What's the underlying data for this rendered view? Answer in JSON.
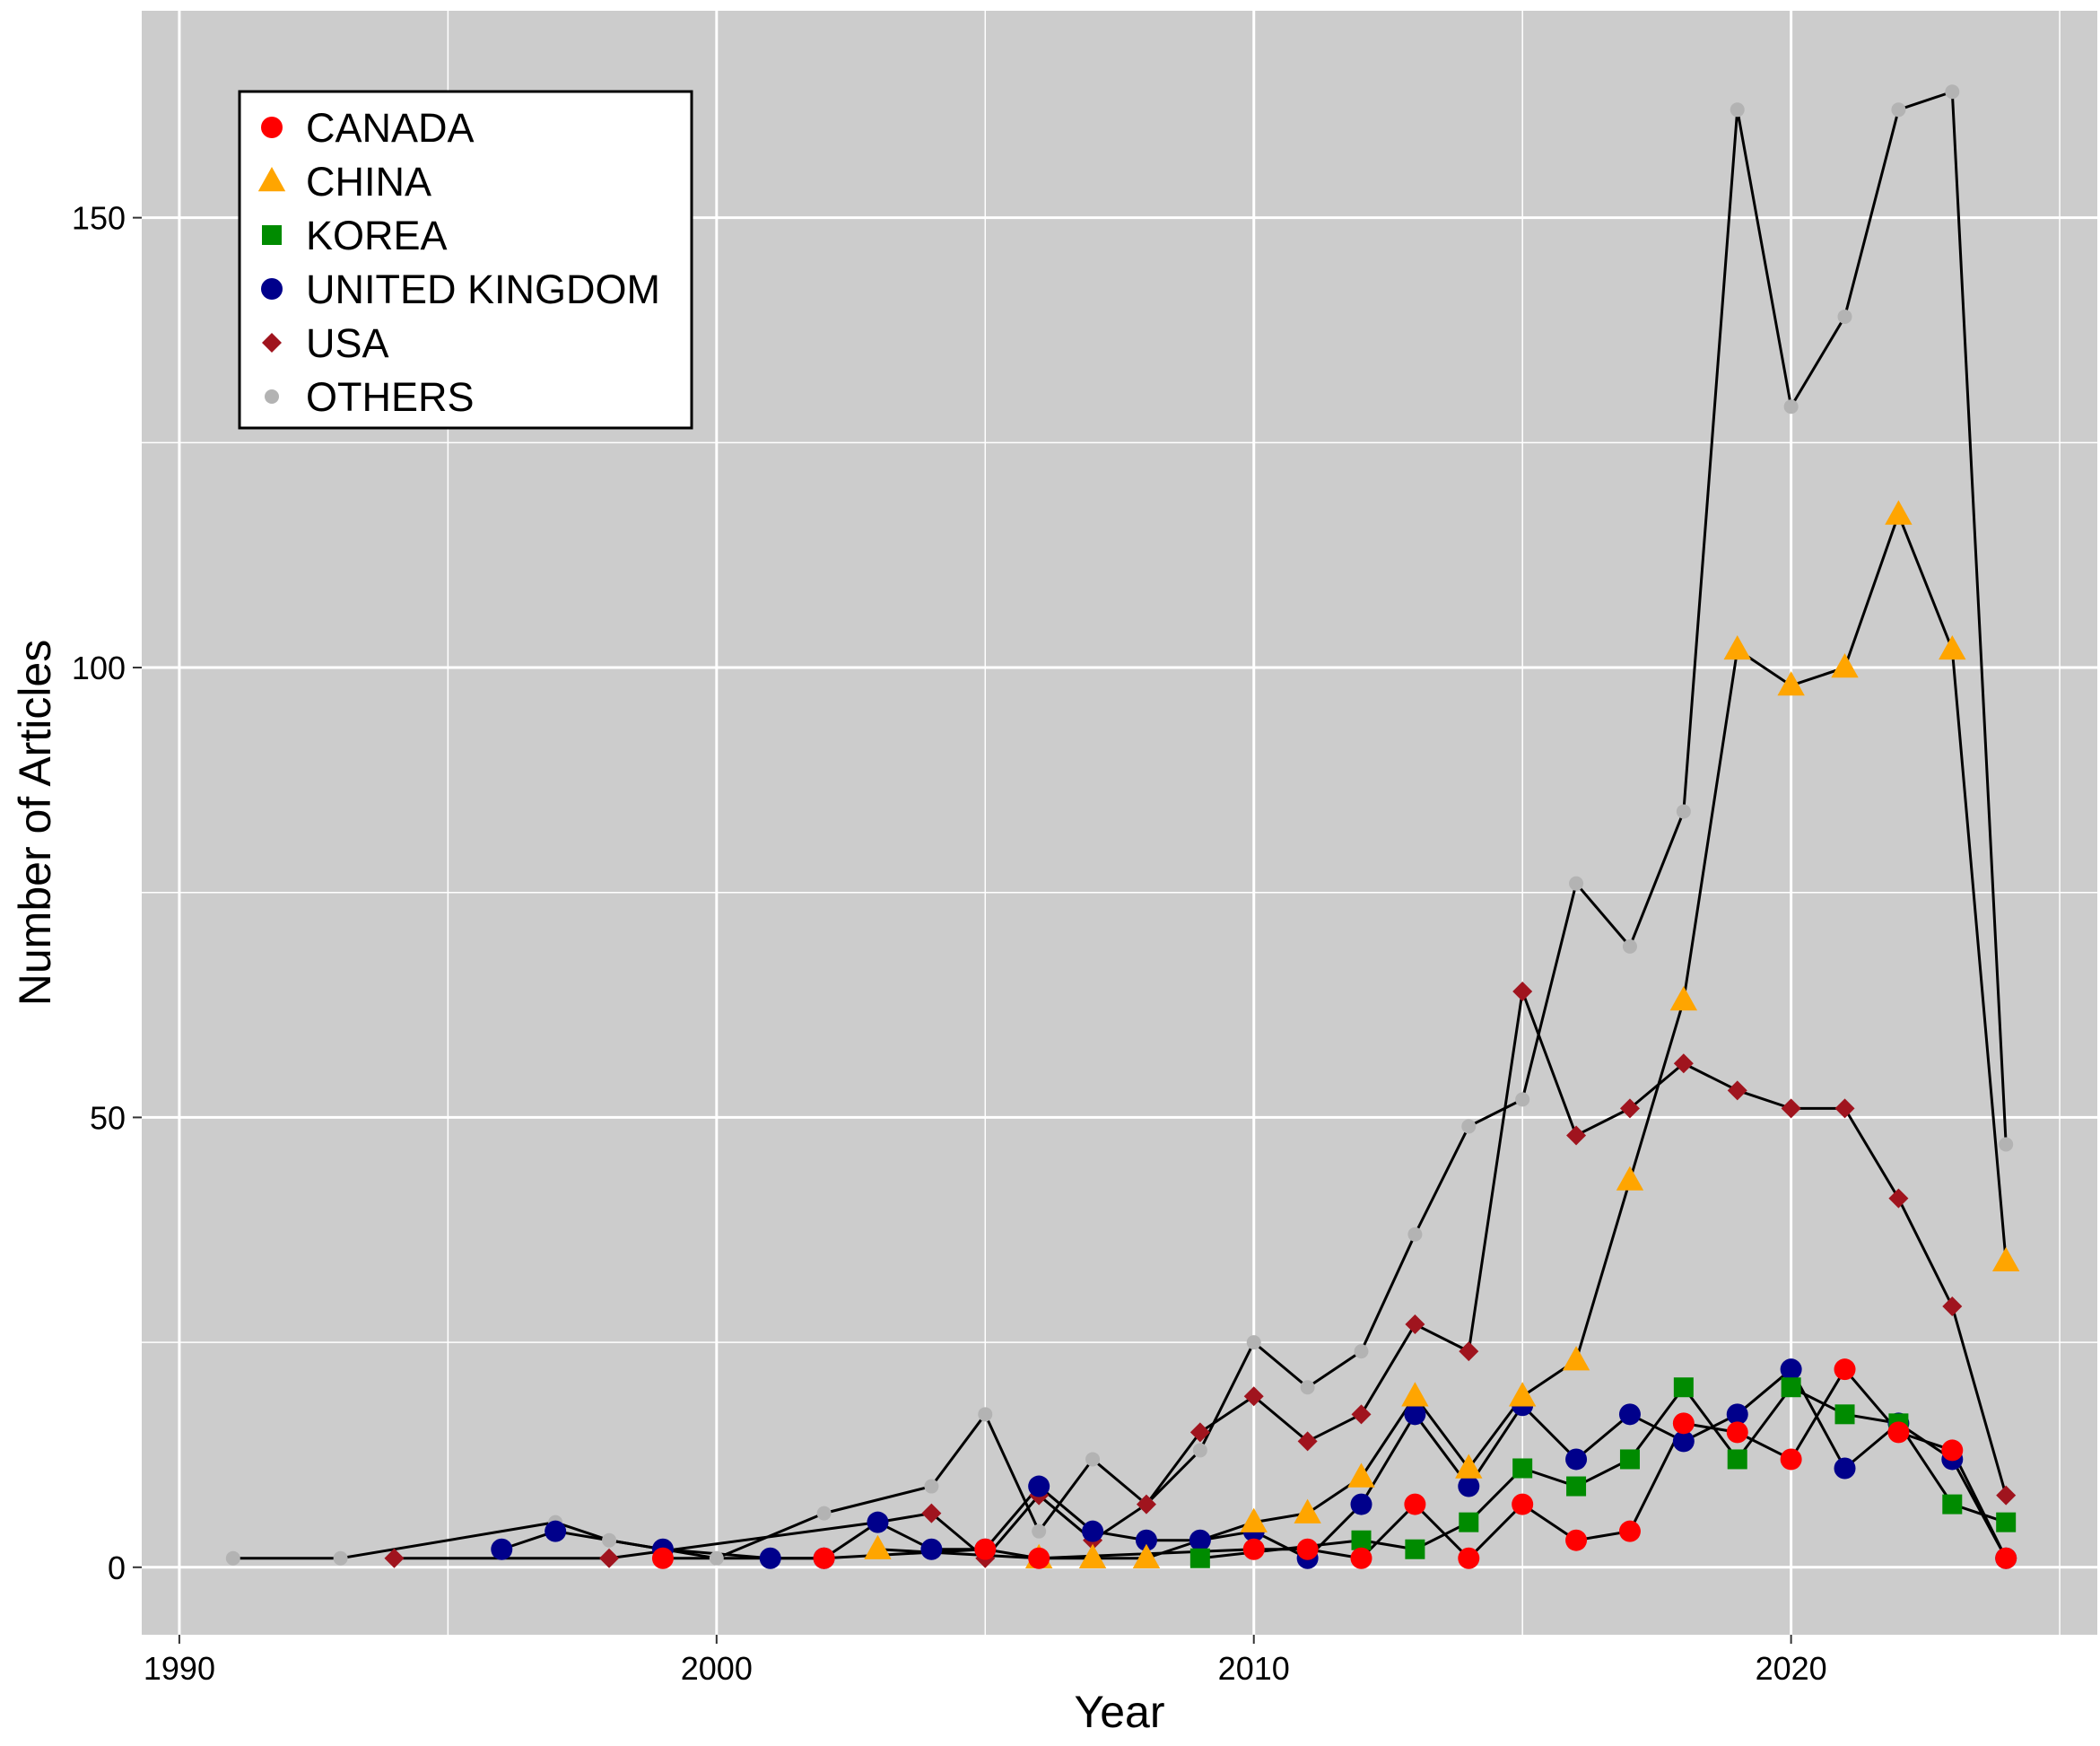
{
  "chart_data": {
    "type": "line",
    "title": "",
    "xlabel": "Year",
    "ylabel": "Number of Articles",
    "xlim": [
      1989.3,
      2025.7
    ],
    "ylim": [
      -7.5,
      173
    ],
    "x_ticks": [
      1990,
      2000,
      2010,
      2020
    ],
    "x_tick_labels": [
      "1990",
      "2000",
      "2010",
      "2020"
    ],
    "y_ticks": [
      0,
      50,
      100,
      150
    ],
    "y_tick_labels": [
      "0",
      "50",
      "100",
      "150"
    ],
    "grid": true,
    "legend_position": "top-left",
    "background": "#cccccc",
    "line_color": "#000000",
    "series": [
      {
        "name": "CANADA",
        "color": "#ff0000",
        "marker": "circle",
        "points": [
          [
            1999,
            1
          ],
          [
            2002,
            1
          ],
          [
            2005,
            2
          ],
          [
            2006,
            1
          ],
          [
            2010,
            2
          ],
          [
            2011,
            2
          ],
          [
            2012,
            1
          ],
          [
            2013,
            7
          ],
          [
            2014,
            1
          ],
          [
            2015,
            7
          ],
          [
            2016,
            3
          ],
          [
            2017,
            4
          ],
          [
            2018,
            16
          ],
          [
            2019,
            15
          ],
          [
            2020,
            12
          ],
          [
            2021,
            22
          ],
          [
            2022,
            15
          ],
          [
            2023,
            13
          ],
          [
            2024,
            1
          ]
        ]
      },
      {
        "name": "CHINA",
        "color": "#ffa500",
        "marker": "triangle",
        "points": [
          [
            2003,
            2
          ],
          [
            2006,
            1
          ],
          [
            2007,
            1
          ],
          [
            2008,
            1
          ],
          [
            2010,
            5
          ],
          [
            2011,
            6
          ],
          [
            2012,
            10
          ],
          [
            2013,
            19
          ],
          [
            2014,
            11
          ],
          [
            2015,
            19
          ],
          [
            2016,
            23
          ],
          [
            2017,
            43
          ],
          [
            2018,
            63
          ],
          [
            2019,
            102
          ],
          [
            2020,
            98
          ],
          [
            2021,
            100
          ],
          [
            2022,
            117
          ],
          [
            2023,
            102
          ],
          [
            2024,
            34
          ]
        ]
      },
      {
        "name": "KOREA",
        "color": "#008b00",
        "marker": "square",
        "points": [
          [
            2009,
            1
          ],
          [
            2012,
            3
          ],
          [
            2013,
            2
          ],
          [
            2014,
            5
          ],
          [
            2015,
            11
          ],
          [
            2016,
            9
          ],
          [
            2017,
            12
          ],
          [
            2018,
            20
          ],
          [
            2019,
            12
          ],
          [
            2020,
            20
          ],
          [
            2021,
            17
          ],
          [
            2022,
            16
          ],
          [
            2023,
            7
          ],
          [
            2024,
            5
          ]
        ]
      },
      {
        "name": "UNITED KINGDOM",
        "color": "#00008b",
        "marker": "circle",
        "points": [
          [
            1996,
            2
          ],
          [
            1997,
            4
          ],
          [
            1999,
            2
          ],
          [
            2001,
            1
          ],
          [
            2002,
            1
          ],
          [
            2003,
            5
          ],
          [
            2004,
            2
          ],
          [
            2005,
            2
          ],
          [
            2006,
            9
          ],
          [
            2007,
            4
          ],
          [
            2008,
            3
          ],
          [
            2009,
            3
          ],
          [
            2010,
            4
          ],
          [
            2011,
            1
          ],
          [
            2012,
            7
          ],
          [
            2013,
            17
          ],
          [
            2014,
            9
          ],
          [
            2015,
            18
          ],
          [
            2016,
            12
          ],
          [
            2017,
            17
          ],
          [
            2018,
            14
          ],
          [
            2019,
            17
          ],
          [
            2020,
            22
          ],
          [
            2021,
            11
          ],
          [
            2022,
            16
          ],
          [
            2023,
            12
          ],
          [
            2024,
            1
          ]
        ]
      },
      {
        "name": "USA",
        "color": "#a0141e",
        "marker": "diamond",
        "points": [
          [
            1994,
            1
          ],
          [
            1998,
            1
          ],
          [
            2003,
            5
          ],
          [
            2004,
            6
          ],
          [
            2005,
            1
          ],
          [
            2006,
            8
          ],
          [
            2007,
            3
          ],
          [
            2008,
            7
          ],
          [
            2009,
            15
          ],
          [
            2010,
            19
          ],
          [
            2011,
            14
          ],
          [
            2012,
            17
          ],
          [
            2013,
            27
          ],
          [
            2014,
            24
          ],
          [
            2015,
            64
          ],
          [
            2016,
            48
          ],
          [
            2017,
            51
          ],
          [
            2018,
            56
          ],
          [
            2019,
            53
          ],
          [
            2020,
            51
          ],
          [
            2021,
            51
          ],
          [
            2022,
            41
          ],
          [
            2023,
            29
          ],
          [
            2024,
            8
          ]
        ]
      },
      {
        "name": "OTHERS",
        "color": "#b3b3b3",
        "marker": "smallcircle",
        "points": [
          [
            1991,
            1
          ],
          [
            1993,
            1
          ],
          [
            1997,
            5
          ],
          [
            1998,
            3
          ],
          [
            2000,
            1
          ],
          [
            2002,
            6
          ],
          [
            2004,
            9
          ],
          [
            2005,
            17
          ],
          [
            2006,
            4
          ],
          [
            2007,
            12
          ],
          [
            2008,
            7
          ],
          [
            2009,
            13
          ],
          [
            2010,
            25
          ],
          [
            2011,
            20
          ],
          [
            2012,
            24
          ],
          [
            2013,
            37
          ],
          [
            2014,
            49
          ],
          [
            2015,
            52
          ],
          [
            2016,
            76
          ],
          [
            2017,
            69
          ],
          [
            2018,
            84
          ],
          [
            2019,
            162
          ],
          [
            2020,
            129
          ],
          [
            2021,
            139
          ],
          [
            2022,
            162
          ],
          [
            2023,
            164
          ],
          [
            2024,
            47
          ]
        ]
      }
    ]
  }
}
